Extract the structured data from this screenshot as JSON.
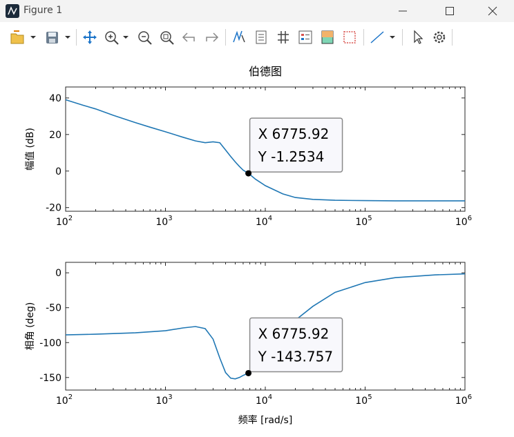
{
  "window": {
    "title": "Figure 1"
  },
  "toolbar": {
    "tools": [
      "open-file-icon",
      "save-icon",
      "pan-icon",
      "zoom-in-icon",
      "zoom-out-icon",
      "zoom-reset-icon",
      "undo-icon",
      "redo-icon",
      "brush-icon",
      "insert-colorbar-icon",
      "grid-icon",
      "insert-legend-icon",
      "colormap-icon",
      "box-icon",
      "line-icon",
      "pointer-icon",
      "settings-icon"
    ]
  },
  "chart_data": {
    "type": "line",
    "title": "伯德图",
    "xlabel": "频率 [rad/s]",
    "xscale": "log",
    "xlim": [
      100,
      1000000
    ],
    "xtick_exponents": [
      "2",
      "3",
      "4",
      "5",
      "6"
    ],
    "color": "#1f77b4",
    "subplots": [
      {
        "ylabel": "幅值 (dB)",
        "ylim": [
          -22,
          46
        ],
        "yticks": [
          "40",
          "20",
          "0",
          "-20"
        ],
        "series": [
          {
            "x": [
              100,
              150,
              200,
              300,
              500,
              700,
              1000,
              1500,
              2000,
              2500,
              3000,
              3500,
              4000,
              4500,
              5000,
              5500,
              6000,
              6775.92,
              8000,
              10000,
              15000,
              20000,
              30000,
              50000,
              100000,
              200000,
              500000,
              1000000
            ],
            "y": [
              39,
              36,
              34,
              30.5,
              26.5,
              24,
              21.5,
              18.5,
              16.5,
              15.5,
              16,
              15.5,
              11.5,
              8,
              5,
              2.5,
              0.5,
              -1.2534,
              -4.5,
              -8,
              -12.5,
              -14.5,
              -15.5,
              -16,
              -16.2,
              -16.3,
              -16.3,
              -16.3
            ]
          }
        ],
        "datatip": {
          "x_label": "X 6775.92",
          "y_label": "Y -1.2534",
          "x": 6775.92,
          "y": -1.2534
        }
      },
      {
        "ylabel": "相角 (deg)",
        "ylim": [
          -168,
          15
        ],
        "yticks": [
          "0",
          "-50",
          "-100",
          "-150"
        ],
        "series": [
          {
            "x": [
              100,
              200,
              500,
              1000,
              1500,
              2000,
              2500,
              3000,
              3500,
              4000,
              4500,
              5000,
              5500,
              6000,
              6775.92,
              8000,
              10000,
              15000,
              20000,
              30000,
              50000,
              100000,
              200000,
              500000,
              1000000
            ],
            "y": [
              -89,
              -88,
              -86,
              -83,
              -79,
              -77,
              -80,
              -95,
              -122,
              -143,
              -151,
              -152,
              -150,
              -147,
              -143.757,
              -130,
              -110,
              -85,
              -68,
              -48,
              -28,
              -14,
              -7,
              -3,
              -1.5
            ]
          }
        ],
        "datatip": {
          "x_label": "X 6775.92",
          "y_label": "Y -143.757",
          "x": 6775.92,
          "y": -143.757
        }
      }
    ]
  }
}
